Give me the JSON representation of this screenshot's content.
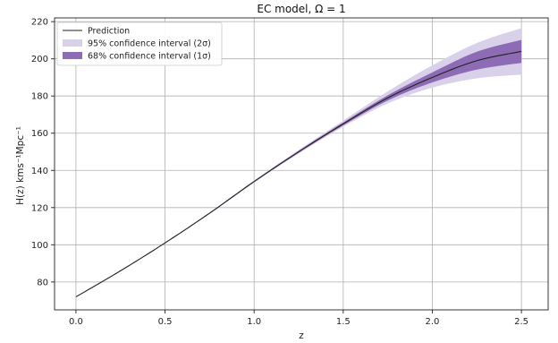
{
  "chart_data": {
    "type": "line",
    "title": "EC model, Ω = 1",
    "xlabel": "z",
    "ylabel": "H(z) kms⁻¹Mpc⁻¹",
    "xlim": [
      -0.12,
      2.65
    ],
    "ylim": [
      65,
      222
    ],
    "xticks": [
      0.0,
      0.5,
      1.0,
      1.5,
      2.0,
      2.5
    ],
    "xtick_labels": [
      "0.0",
      "0.5",
      "1.0",
      "1.5",
      "2.0",
      "2.5"
    ],
    "yticks": [
      80,
      100,
      120,
      140,
      160,
      180,
      200,
      220
    ],
    "ytick_labels": [
      "80",
      "100",
      "120",
      "140",
      "160",
      "180",
      "200",
      "220"
    ],
    "grid": true,
    "legend_position": "top-left",
    "colors": {
      "prediction": "#222222",
      "band_68": "#8e6bb5",
      "band_95": "#d9d0ea",
      "grid": "#b0b0b0"
    },
    "series": [
      {
        "name": "Prediction",
        "kind": "line",
        "x": [
          0.0,
          0.25,
          0.5,
          0.75,
          1.0,
          1.25,
          1.5,
          1.75,
          2.0,
          2.25,
          2.5
        ],
        "y": [
          72,
          86,
          101,
          117,
          134,
          150,
          165,
          179,
          190,
          199,
          204
        ]
      },
      {
        "name": "95% confidence interval (2σ)",
        "kind": "band",
        "x": [
          0.0,
          0.25,
          0.5,
          0.75,
          1.0,
          1.25,
          1.5,
          1.75,
          2.0,
          2.25,
          2.5
        ],
        "y_lower": [
          71.8,
          85.8,
          100.8,
          116.6,
          133.4,
          149.0,
          163.5,
          176.0,
          184.5,
          189.5,
          191.5
        ],
        "y_upper": [
          72.2,
          86.2,
          101.2,
          117.4,
          134.6,
          151.0,
          166.8,
          182.5,
          196.5,
          208.5,
          216.5
        ]
      },
      {
        "name": "68% confidence interval (1σ)",
        "kind": "band",
        "x": [
          0.0,
          0.25,
          0.5,
          0.75,
          1.0,
          1.25,
          1.5,
          1.75,
          2.0,
          2.25,
          2.5
        ],
        "y_lower": [
          71.9,
          85.9,
          100.9,
          116.8,
          133.7,
          149.5,
          164.2,
          177.6,
          187.3,
          194.2,
          197.8
        ],
        "y_upper": [
          72.1,
          86.1,
          101.1,
          117.2,
          134.3,
          150.5,
          165.8,
          180.4,
          192.7,
          203.8,
          210.2
        ]
      }
    ]
  }
}
